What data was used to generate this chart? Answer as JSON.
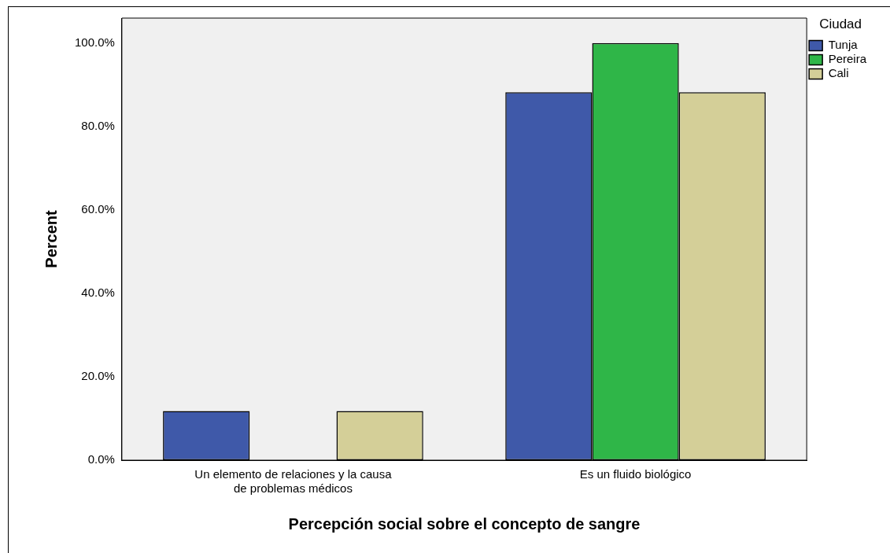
{
  "chart_data": {
    "type": "bar",
    "xlabel": "Percepción social sobre el concepto de sangre",
    "ylabel": "Percent",
    "legend_title": "Ciudad",
    "categories": [
      "Un elemento de relaciones y la causa de problemas médicos",
      "Es un fluido biológico"
    ],
    "series": [
      {
        "name": "Tunja",
        "color": "#3f59a9",
        "values": [
          11.8,
          88.2
        ]
      },
      {
        "name": "Pereira",
        "color": "#2fb648",
        "values": [
          0,
          100
        ]
      },
      {
        "name": "Cali",
        "color": "#d4cf98",
        "values": [
          11.8,
          88.2
        ]
      }
    ],
    "ylim": [
      0,
      106
    ],
    "yticks": [
      {
        "value": 0,
        "label": "0.0%"
      },
      {
        "value": 20,
        "label": "20.0%"
      },
      {
        "value": 40,
        "label": "40.0%"
      },
      {
        "value": 60,
        "label": "60.0%"
      },
      {
        "value": 80,
        "label": "80.0%"
      },
      {
        "value": 100,
        "label": "100.0%"
      }
    ],
    "grid": false,
    "legend": "top right"
  }
}
